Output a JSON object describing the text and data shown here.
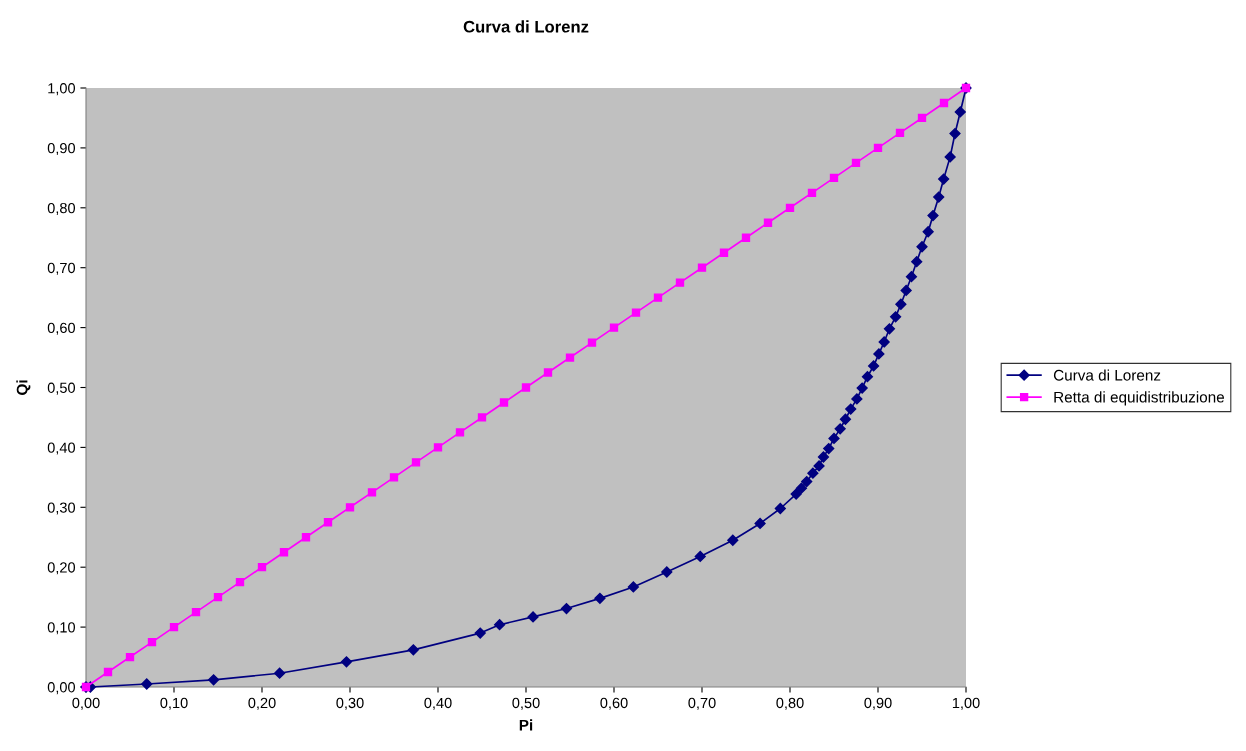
{
  "chart_data": {
    "type": "line",
    "title": "Curva di Lorenz",
    "xlabel": "Pi",
    "ylabel": "Qi",
    "xlim": [
      0,
      1
    ],
    "ylim": [
      0,
      1
    ],
    "xticks": [
      {
        "value": 0,
        "label": "0,00"
      },
      {
        "value": 0.1,
        "label": "0,10"
      },
      {
        "value": 0.2,
        "label": "0,20"
      },
      {
        "value": 0.3,
        "label": "0,30"
      },
      {
        "value": 0.4,
        "label": "0,40"
      },
      {
        "value": 0.5,
        "label": "0,50"
      },
      {
        "value": 0.6,
        "label": "0,60"
      },
      {
        "value": 0.7,
        "label": "0,70"
      },
      {
        "value": 0.8,
        "label": "0,80"
      },
      {
        "value": 0.9,
        "label": "0,90"
      },
      {
        "value": 1,
        "label": "1,00"
      }
    ],
    "yticks": [
      {
        "value": 0,
        "label": "0,00"
      },
      {
        "value": 0.1,
        "label": "0,10"
      },
      {
        "value": 0.2,
        "label": "0,20"
      },
      {
        "value": 0.3,
        "label": "0,30"
      },
      {
        "value": 0.4,
        "label": "0,40"
      },
      {
        "value": 0.5,
        "label": "0,50"
      },
      {
        "value": 0.6,
        "label": "0,60"
      },
      {
        "value": 0.7,
        "label": "0,70"
      },
      {
        "value": 0.8,
        "label": "0,80"
      },
      {
        "value": 0.9,
        "label": "0,90"
      },
      {
        "value": 1,
        "label": "1,00"
      }
    ],
    "grid": false,
    "legend": "right",
    "line_style": "solid",
    "series": [
      {
        "name": "Curva di Lorenz",
        "color": "#000080",
        "marker": "diamond",
        "x": [
          0,
          0.005,
          0.069,
          0.145,
          0.22,
          0.296,
          0.372,
          0.448,
          0.47,
          0.508,
          0.546,
          0.584,
          0.622,
          0.66,
          0.698,
          0.735,
          0.766,
          0.789,
          0.807,
          0.813,
          0.819,
          0.826,
          0.833,
          0.838,
          0.844,
          0.85,
          0.857,
          0.863,
          0.869,
          0.876,
          0.882,
          0.888,
          0.895,
          0.901,
          0.907,
          0.913,
          0.92,
          0.926,
          0.932,
          0.938,
          0.944,
          0.95,
          0.957,
          0.9625,
          0.969,
          0.9746,
          0.982,
          0.9875,
          0.9935,
          1
        ],
        "values": [
          0,
          0,
          0.005,
          0.012,
          0.023,
          0.042,
          0.062,
          0.09,
          0.104,
          0.117,
          0.131,
          0.148,
          0.167,
          0.192,
          0.218,
          0.245,
          0.273,
          0.298,
          0.322,
          0.332,
          0.343,
          0.357,
          0.369,
          0.384,
          0.398,
          0.415,
          0.431,
          0.447,
          0.464,
          0.481,
          0.499,
          0.518,
          0.536,
          0.556,
          0.576,
          0.598,
          0.618,
          0.639,
          0.662,
          0.685,
          0.71,
          0.735,
          0.76,
          0.787,
          0.818,
          0.848,
          0.885,
          0.924,
          0.96,
          1
        ]
      },
      {
        "name": "Retta di equidistribuzione",
        "color": "#ff00ff",
        "marker": "square",
        "x": [
          0,
          0.025,
          0.05,
          0.075,
          0.1,
          0.125,
          0.15,
          0.175,
          0.2,
          0.225,
          0.25,
          0.275,
          0.3,
          0.325,
          0.35,
          0.375,
          0.4,
          0.425,
          0.45,
          0.475,
          0.5,
          0.525,
          0.55,
          0.575,
          0.6,
          0.625,
          0.65,
          0.675,
          0.7,
          0.725,
          0.75,
          0.775,
          0.8,
          0.825,
          0.85,
          0.875,
          0.9,
          0.925,
          0.95,
          0.975,
          1
        ],
        "values": [
          0,
          0.025,
          0.05,
          0.075,
          0.1,
          0.125,
          0.15,
          0.175,
          0.2,
          0.225,
          0.25,
          0.275,
          0.3,
          0.325,
          0.35,
          0.375,
          0.4,
          0.425,
          0.45,
          0.475,
          0.5,
          0.525,
          0.55,
          0.575,
          0.6,
          0.625,
          0.65,
          0.675,
          0.7,
          0.725,
          0.75,
          0.775,
          0.8,
          0.825,
          0.85,
          0.875,
          0.9,
          0.925,
          0.95,
          0.975,
          1
        ]
      }
    ]
  }
}
